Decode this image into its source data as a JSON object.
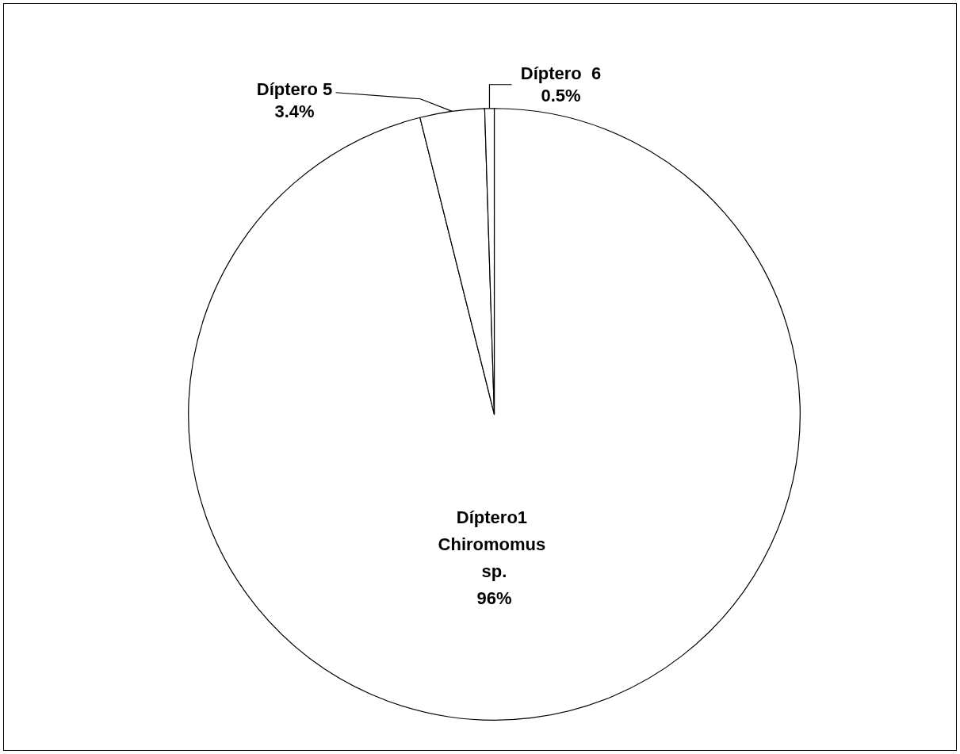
{
  "chart_data": {
    "type": "pie",
    "categories": [
      "Díptero1 Chiromomus sp.",
      "Díptero 5",
      "Díptero  6"
    ],
    "values": [
      96,
      3.4,
      0.5
    ],
    "value_labels": [
      "96%",
      "3.4%",
      "0.5%"
    ],
    "colors": [
      "#ffffff",
      "#ffffff",
      "#ffffff"
    ],
    "legend": false
  }
}
